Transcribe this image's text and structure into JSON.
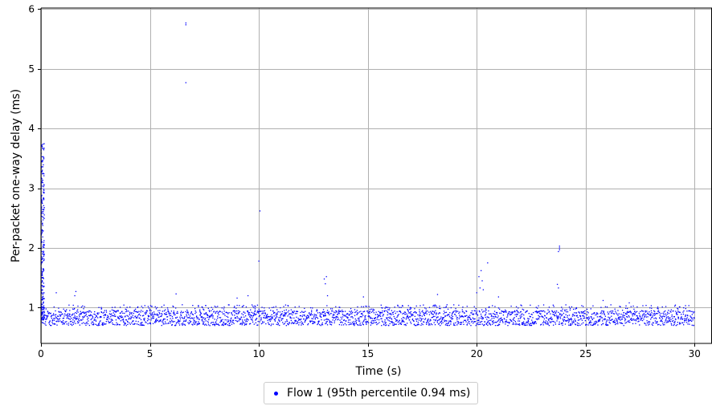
{
  "chart_data": {
    "type": "scatter",
    "title": "",
    "xlabel": "Time (s)",
    "ylabel": "Per-packet one-way delay (ms)",
    "xlim": [
      0,
      30.8
    ],
    "ylim": [
      0.4,
      6.02
    ],
    "xticks": [
      0,
      5,
      10,
      15,
      20,
      25,
      30
    ],
    "yticks": [
      1,
      2,
      3,
      4,
      5,
      6
    ],
    "grid": true,
    "legend_placement": "bottom-center-outside",
    "series": [
      {
        "name": "Flow 1 (95th percentile 0.94 ms)",
        "color": "#0000ff",
        "summary": {
          "x_range": [
            0,
            30
          ],
          "baseline_delay_range": [
            0.7,
            0.95
          ],
          "percentile_95": 0.94
        },
        "startup_ramp": {
          "x_range": [
            0,
            0.15
          ],
          "y_range": [
            0.8,
            3.75
          ]
        },
        "outliers": [
          [
            6.65,
            5.77
          ],
          [
            6.65,
            5.74
          ],
          [
            6.65,
            4.77
          ],
          [
            10.05,
            2.62
          ],
          [
            10.0,
            1.78
          ],
          [
            13.1,
            1.52
          ],
          [
            13.0,
            1.48
          ],
          [
            13.05,
            1.4
          ],
          [
            13.15,
            1.2
          ],
          [
            20.2,
            1.62
          ],
          [
            20.5,
            1.75
          ],
          [
            20.1,
            1.52
          ],
          [
            20.25,
            1.45
          ],
          [
            20.15,
            1.33
          ],
          [
            20.3,
            1.3
          ],
          [
            20.0,
            1.25
          ],
          [
            23.8,
            2.03
          ],
          [
            23.8,
            2.0
          ],
          [
            23.8,
            1.97
          ],
          [
            23.75,
            1.94
          ],
          [
            23.7,
            1.39
          ],
          [
            23.75,
            1.33
          ],
          [
            0.7,
            1.25
          ],
          [
            1.6,
            1.27
          ],
          [
            1.55,
            1.2
          ],
          [
            6.2,
            1.23
          ],
          [
            9.0,
            1.16
          ],
          [
            9.5,
            1.2
          ],
          [
            14.8,
            1.18
          ],
          [
            18.2,
            1.22
          ],
          [
            21.0,
            1.18
          ],
          [
            25.8,
            1.12
          ],
          [
            27.0,
            1.08
          ]
        ]
      }
    ]
  }
}
